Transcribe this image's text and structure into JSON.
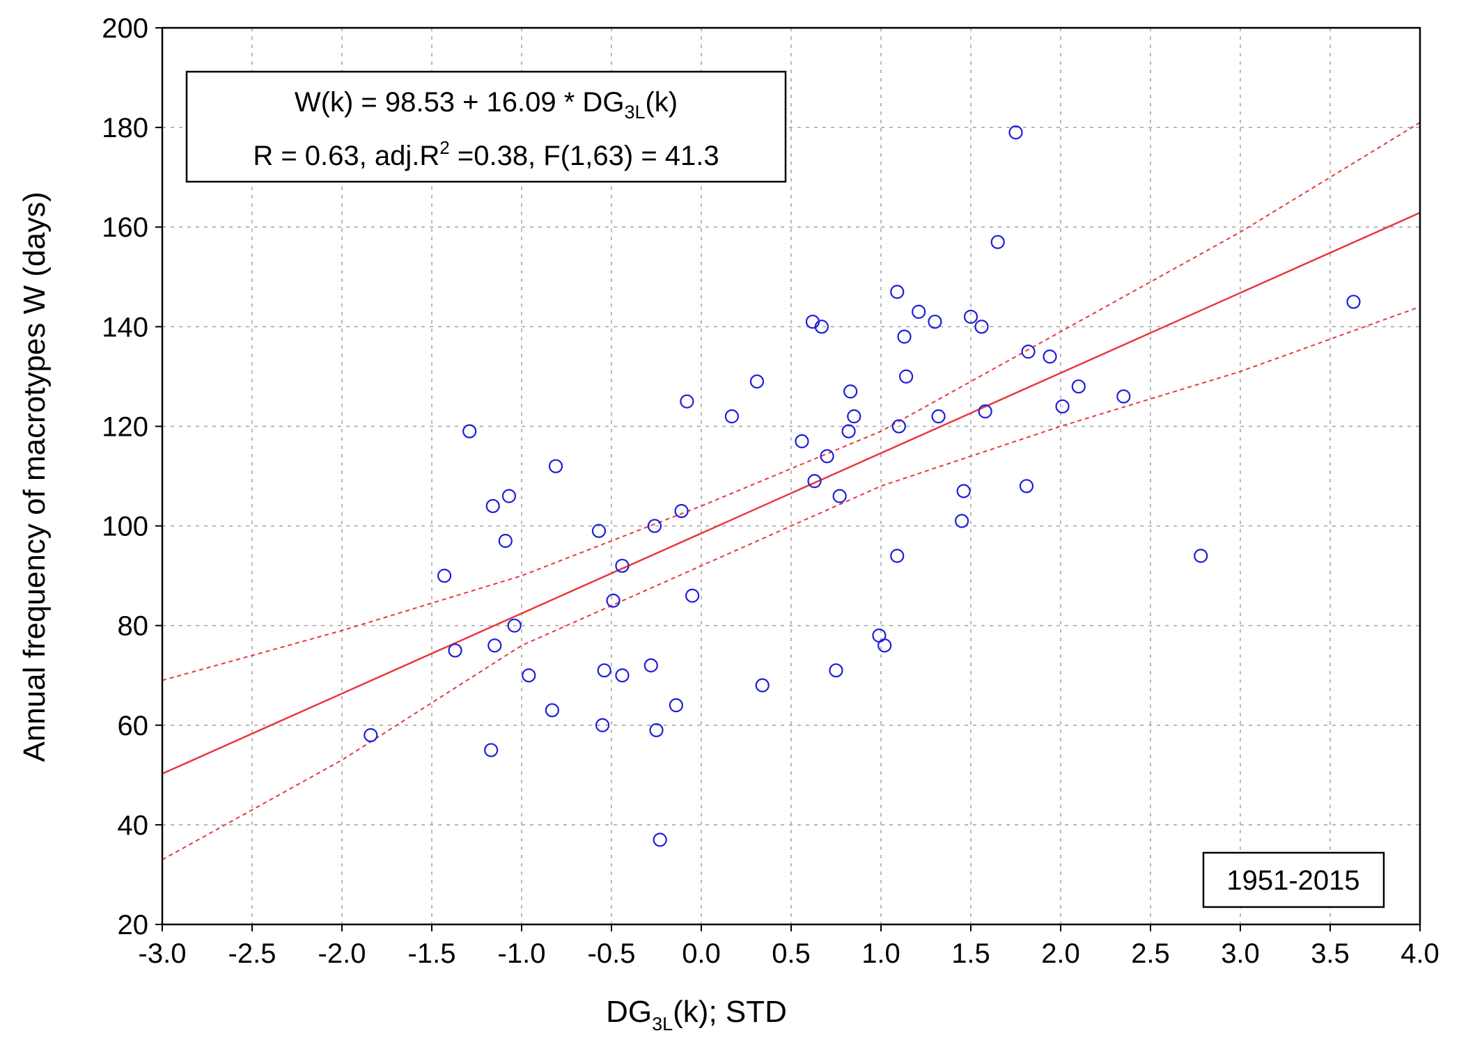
{
  "chart_data": {
    "type": "scatter",
    "title": "",
    "xlabel": {
      "main": "DG",
      "sub": "3L",
      "rest": "(k); STD"
    },
    "ylabel": "Annual frequency of macrotypes W (days)",
    "xlim": [
      -3.0,
      4.0
    ],
    "ylim": [
      20,
      200
    ],
    "grid": true,
    "x_ticks": [
      -3.0,
      -2.5,
      -2.0,
      -1.5,
      -1.0,
      -0.5,
      0.0,
      0.5,
      1.0,
      1.5,
      2.0,
      2.5,
      3.0,
      3.5,
      4.0
    ],
    "x_tick_labels": [
      "-3.0",
      "-2.5",
      "-2.0",
      "-1.5",
      "-1.0",
      "-0.5",
      "0.0",
      "0.5",
      "1.0",
      "1.5",
      "2.0",
      "2.5",
      "3.0",
      "3.5",
      "4.0"
    ],
    "y_ticks": [
      20,
      40,
      60,
      80,
      100,
      120,
      140,
      160,
      180,
      200
    ],
    "y_tick_labels": [
      "20",
      "40",
      "60",
      "80",
      "100",
      "120",
      "140",
      "160",
      "180",
      "200"
    ],
    "points": [
      [
        -1.84,
        58
      ],
      [
        -1.43,
        90
      ],
      [
        -1.37,
        75
      ],
      [
        -1.29,
        119
      ],
      [
        -1.17,
        55
      ],
      [
        -1.16,
        104
      ],
      [
        -1.15,
        76
      ],
      [
        -1.09,
        97
      ],
      [
        -1.07,
        106
      ],
      [
        -1.04,
        80
      ],
      [
        -0.96,
        70
      ],
      [
        -0.83,
        63
      ],
      [
        -0.81,
        112
      ],
      [
        -0.57,
        99
      ],
      [
        -0.55,
        60
      ],
      [
        -0.54,
        71
      ],
      [
        -0.49,
        85
      ],
      [
        -0.44,
        70
      ],
      [
        -0.44,
        92
      ],
      [
        -0.28,
        72
      ],
      [
        -0.26,
        100
      ],
      [
        -0.25,
        59
      ],
      [
        -0.23,
        37
      ],
      [
        -0.14,
        64
      ],
      [
        -0.11,
        103
      ],
      [
        -0.08,
        125
      ],
      [
        -0.05,
        86
      ],
      [
        0.17,
        122
      ],
      [
        0.31,
        129
      ],
      [
        0.34,
        68
      ],
      [
        0.56,
        117
      ],
      [
        0.62,
        141
      ],
      [
        0.63,
        109
      ],
      [
        0.67,
        140
      ],
      [
        0.7,
        114
      ],
      [
        0.75,
        71
      ],
      [
        0.77,
        106
      ],
      [
        0.82,
        119
      ],
      [
        0.83,
        127
      ],
      [
        0.85,
        122
      ],
      [
        0.99,
        78
      ],
      [
        1.02,
        76
      ],
      [
        1.09,
        94
      ],
      [
        1.09,
        147
      ],
      [
        1.1,
        120
      ],
      [
        1.13,
        138
      ],
      [
        1.14,
        130
      ],
      [
        1.21,
        143
      ],
      [
        1.3,
        141
      ],
      [
        1.32,
        122
      ],
      [
        1.45,
        101
      ],
      [
        1.46,
        107
      ],
      [
        1.5,
        142
      ],
      [
        1.56,
        140
      ],
      [
        1.58,
        123
      ],
      [
        1.65,
        157
      ],
      [
        1.75,
        179
      ],
      [
        1.81,
        108
      ],
      [
        1.82,
        135
      ],
      [
        1.94,
        134
      ],
      [
        2.01,
        124
      ],
      [
        2.1,
        128
      ],
      [
        2.35,
        126
      ],
      [
        2.78,
        94
      ],
      [
        3.63,
        145
      ]
    ],
    "point_color": "#1f1fd6",
    "regression": {
      "intercept": 98.53,
      "slope": 16.09,
      "color": "#e8383d"
    },
    "confidence_band": {
      "upper": [
        [
          -3.0,
          69
        ],
        [
          -2.0,
          79
        ],
        [
          -1.0,
          90
        ],
        [
          0.0,
          104
        ],
        [
          1.0,
          119
        ],
        [
          2.0,
          139
        ],
        [
          3.0,
          159
        ],
        [
          4.0,
          181
        ]
      ],
      "lower": [
        [
          -3.0,
          33
        ],
        [
          -2.0,
          53
        ],
        [
          -1.0,
          76
        ],
        [
          0.0,
          92
        ],
        [
          1.0,
          108
        ],
        [
          2.0,
          120
        ],
        [
          3.0,
          131
        ],
        [
          4.0,
          144
        ]
      ]
    },
    "annotation_equation": {
      "lhs": "W(k) = 98.53 + 16.09 * DG",
      "sub": "3L",
      "rhs": "(k)"
    },
    "annotation_stats": {
      "part1": "R = 0.63, adj.R",
      "sup": "2",
      "part2": " =0.38, F(1,63) = 41.3"
    },
    "period_label": "1951-2015"
  }
}
